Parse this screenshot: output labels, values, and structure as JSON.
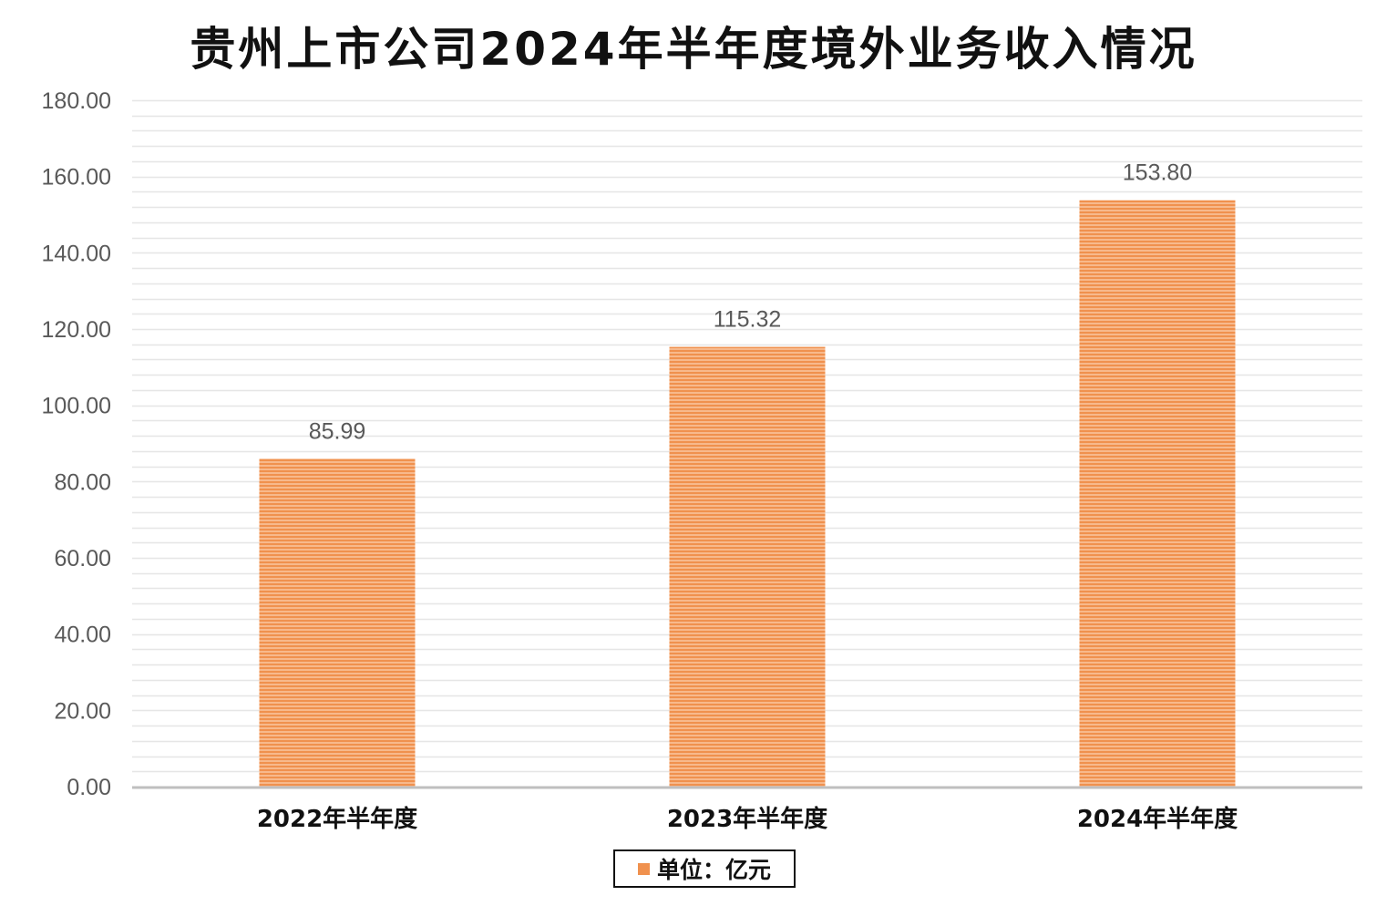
{
  "chart_data": {
    "type": "bar",
    "title": "贵州上市公司2024年半年度境外业务收入情况",
    "categories": [
      "2022年半年度",
      "2023年半年度",
      "2024年半年度"
    ],
    "series": [
      {
        "name": "单位：亿元",
        "values": [
          85.99,
          115.32,
          153.8
        ],
        "labels": [
          "85.99",
          "115.32",
          "153.80"
        ]
      }
    ],
    "ylim": [
      0,
      180
    ],
    "yticks": [
      "0.00",
      "20.00",
      "40.00",
      "60.00",
      "80.00",
      "100.00",
      "120.00",
      "140.00",
      "160.00",
      "180.00"
    ],
    "ytick_values": [
      0,
      20,
      40,
      60,
      80,
      100,
      120,
      140,
      160,
      180
    ],
    "grid": true,
    "legend": "bottom-center",
    "colors": {
      "bar": "#f0914e",
      "bar_stripe": "#f7b98c",
      "grid": "#e6e6e6",
      "axis": "#bfbfbf",
      "tick_text": "#595959",
      "category_text": "#111111"
    }
  }
}
